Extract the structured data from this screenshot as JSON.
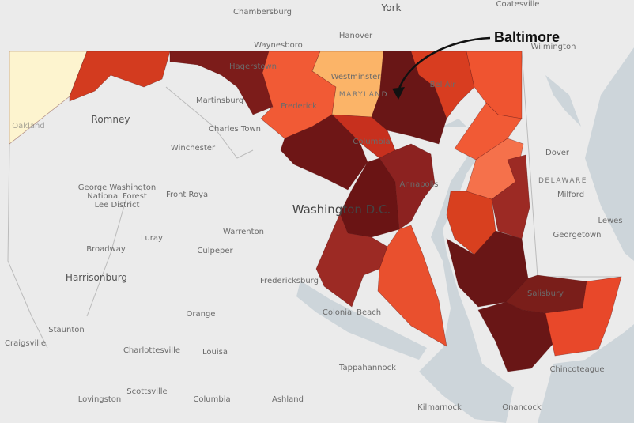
{
  "annotation": {
    "label": "Baltimore"
  },
  "places": [
    {
      "label": "York"
    },
    {
      "label": "Chambersburg"
    },
    {
      "label": "Coatesville"
    },
    {
      "label": "Waynesboro"
    },
    {
      "label": "Hanover"
    },
    {
      "label": "Wilmington"
    },
    {
      "label": "Hagerstown"
    },
    {
      "label": "Martinsburg"
    },
    {
      "label": "Westminster"
    },
    {
      "label": "Bel Air"
    },
    {
      "label": "Romney"
    },
    {
      "label": "Charles Town"
    },
    {
      "label": "Winchester"
    },
    {
      "label": "Frederick"
    },
    {
      "label": "Columbia"
    },
    {
      "label": "Dover"
    },
    {
      "label": "Annapolis"
    },
    {
      "label": "George Washington"
    },
    {
      "label": "National Forest"
    },
    {
      "label": "Lee District"
    },
    {
      "label": "Front Royal"
    },
    {
      "label": "Washington D.C."
    },
    {
      "label": "DELAWARE"
    },
    {
      "label": "Milford"
    },
    {
      "label": "Warrenton"
    },
    {
      "label": "Luray"
    },
    {
      "label": "Broadway"
    },
    {
      "label": "Georgetown"
    },
    {
      "label": "Lewes"
    },
    {
      "label": "Harrisonburg"
    },
    {
      "label": "Culpeper"
    },
    {
      "label": "Fredericksburg"
    },
    {
      "label": "Salisbury"
    },
    {
      "label": "Orange"
    },
    {
      "label": "Colonial Beach"
    },
    {
      "label": "Staunton"
    },
    {
      "label": "Craigsville"
    },
    {
      "label": "Charlottesville"
    },
    {
      "label": "Louisa"
    },
    {
      "label": "Tappahannock"
    },
    {
      "label": "Chincoteague"
    },
    {
      "label": "Lovingston"
    },
    {
      "label": "Scottsville"
    },
    {
      "label": "Columbia"
    },
    {
      "label": "Ashland"
    },
    {
      "label": "Kilmarnock"
    },
    {
      "label": "Onancock"
    },
    {
      "label": "Oakland"
    },
    {
      "label": "MARYLAND"
    }
  ]
}
